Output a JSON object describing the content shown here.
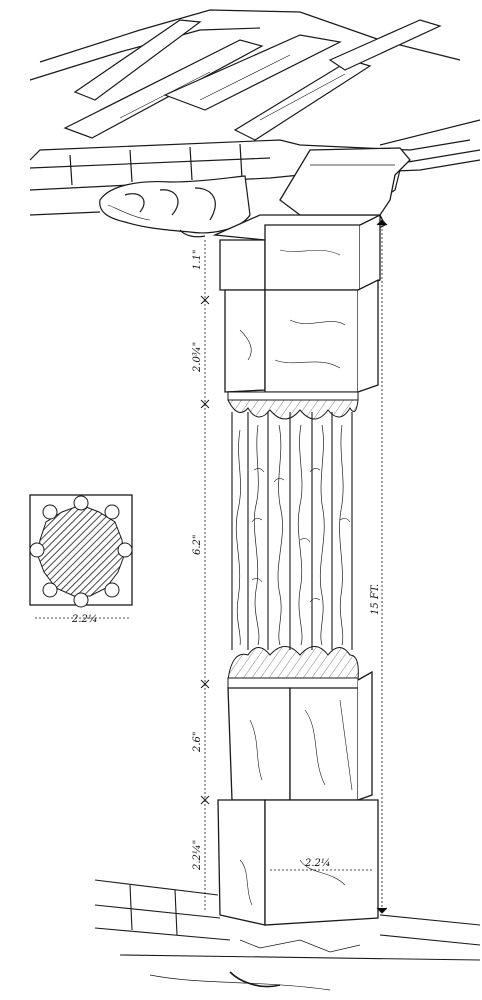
{
  "figure": {
    "dimensions": {
      "capital_block": "1.1\"",
      "bracket_block": "2.0¾\"",
      "shaft": "6.2\"",
      "lower_block": "2.6\"",
      "base": "2.2¼\"",
      "total_height": "15 FT.",
      "base_width": "2.2¼",
      "plan_width": "2.2¼"
    }
  },
  "colors": {
    "ink": "#1a1a1a",
    "paper": "#ffffff"
  }
}
